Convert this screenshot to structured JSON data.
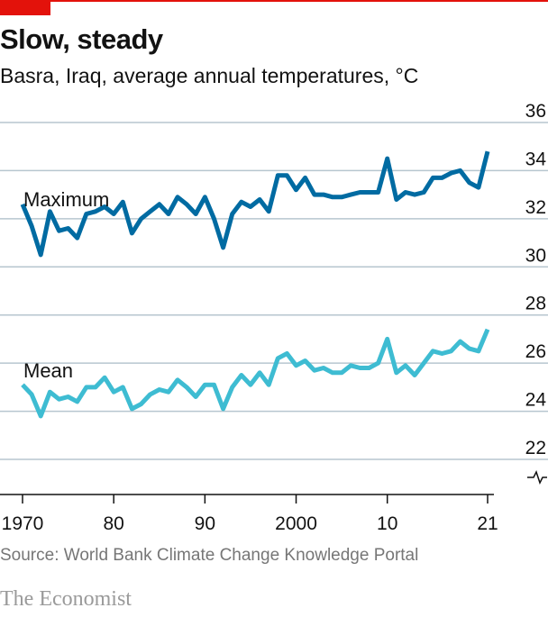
{
  "header": {
    "title": "Slow, steady",
    "subtitle": "Basra, Iraq, average annual temperatures, °C"
  },
  "footer": {
    "source": "Source: World Bank Climate Change Knowledge Portal",
    "brand": "The Economist"
  },
  "colors": {
    "accent": "#e3120b",
    "maximum": "#006ba2",
    "mean": "#3ebcd2",
    "grid": "#b7c6cf",
    "axis": "#121212"
  },
  "chart_data": {
    "type": "line",
    "title": "Slow, steady",
    "subtitle": "Basra, Iraq, average annual temperatures, °C",
    "xlabel": "",
    "ylabel": "",
    "xlim": [
      1970,
      2021
    ],
    "ylim": [
      21,
      36
    ],
    "y_axis_break": true,
    "y_ticks": [
      22,
      24,
      26,
      28,
      30,
      32,
      34,
      36
    ],
    "y_tick_labels": [
      "22",
      "24",
      "26",
      "28",
      "30",
      "32",
      "34",
      "36"
    ],
    "x_ticks": [
      1970,
      1980,
      1990,
      2000,
      2010,
      2021
    ],
    "x_tick_labels": [
      "1970",
      "80",
      "90",
      "2000",
      "10",
      "21"
    ],
    "grid": true,
    "legend": "inline labels",
    "x": [
      1970,
      1971,
      1972,
      1973,
      1974,
      1975,
      1976,
      1977,
      1978,
      1979,
      1980,
      1981,
      1982,
      1983,
      1984,
      1985,
      1986,
      1987,
      1988,
      1989,
      1990,
      1991,
      1992,
      1993,
      1994,
      1995,
      1996,
      1997,
      1998,
      1999,
      2000,
      2001,
      2002,
      2003,
      2004,
      2005,
      2006,
      2007,
      2008,
      2009,
      2010,
      2011,
      2012,
      2013,
      2014,
      2015,
      2016,
      2017,
      2018,
      2019,
      2020,
      2021
    ],
    "series": [
      {
        "name": "Maximum",
        "values": [
          32.6,
          31.7,
          30.5,
          32.3,
          31.5,
          31.6,
          31.2,
          32.2,
          32.3,
          32.5,
          32.2,
          32.7,
          31.4,
          32.0,
          32.3,
          32.6,
          32.2,
          32.9,
          32.6,
          32.2,
          32.9,
          32.0,
          30.8,
          32.2,
          32.7,
          32.5,
          32.8,
          32.3,
          33.8,
          33.8,
          33.2,
          33.7,
          33.0,
          33.0,
          32.9,
          32.9,
          33.0,
          33.1,
          33.1,
          33.1,
          34.5,
          32.8,
          33.1,
          33.0,
          33.1,
          33.7,
          33.7,
          33.9,
          34.0,
          33.5,
          33.3,
          34.8
        ]
      },
      {
        "name": "Mean",
        "values": [
          25.1,
          24.7,
          23.8,
          24.8,
          24.5,
          24.6,
          24.4,
          25.0,
          25.0,
          25.4,
          24.8,
          25.0,
          24.1,
          24.3,
          24.7,
          24.9,
          24.8,
          25.3,
          25.0,
          24.6,
          25.1,
          25.1,
          24.1,
          25.0,
          25.5,
          25.1,
          25.6,
          25.1,
          26.2,
          26.4,
          25.9,
          26.1,
          25.7,
          25.8,
          25.6,
          25.6,
          25.9,
          25.8,
          25.8,
          26.0,
          27.0,
          25.6,
          25.9,
          25.5,
          26.0,
          26.5,
          26.4,
          26.5,
          26.9,
          26.6,
          26.5,
          27.4
        ]
      }
    ]
  }
}
